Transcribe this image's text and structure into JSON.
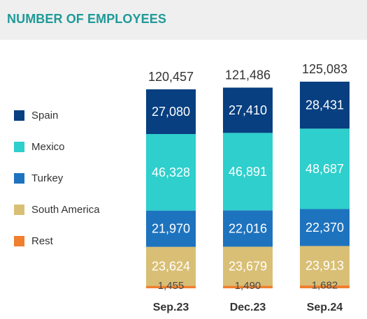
{
  "page": {
    "title": "NUMBER OF EMPLOYEES"
  },
  "chart_data": {
    "type": "bar",
    "stacked": true,
    "title": "NUMBER OF EMPLOYEES",
    "categories": [
      "Sep.23",
      "Dec.23",
      "Sep.24"
    ],
    "totals": [
      "120,457",
      "121,486",
      "125,083"
    ],
    "series": [
      {
        "name": "Rest",
        "color": "#f07f2e",
        "values": [
          1455,
          1490,
          1682
        ],
        "labels": [
          "1,455",
          "1,490",
          "1,682"
        ]
      },
      {
        "name": "South America",
        "color": "#d9bf75",
        "values": [
          23624,
          23679,
          23913
        ],
        "labels": [
          "23,624",
          "23,679",
          "23,913"
        ]
      },
      {
        "name": "Turkey",
        "color": "#1e73be",
        "values": [
          21970,
          22016,
          22370
        ],
        "labels": [
          "21,970",
          "22,016",
          "22,370"
        ]
      },
      {
        "name": "Mexico",
        "color": "#2ecfcc",
        "values": [
          46328,
          46891,
          48687
        ],
        "labels": [
          "46,328",
          "46,891",
          "48,687"
        ]
      },
      {
        "name": "Spain",
        "color": "#073f80",
        "values": [
          27080,
          27410,
          28431
        ],
        "labels": [
          "27,080",
          "27,410",
          "28,431"
        ]
      }
    ],
    "legend": {
      "position": "left",
      "order": [
        "Spain",
        "Mexico",
        "Turkey",
        "South America",
        "Rest"
      ]
    },
    "grid": false
  }
}
